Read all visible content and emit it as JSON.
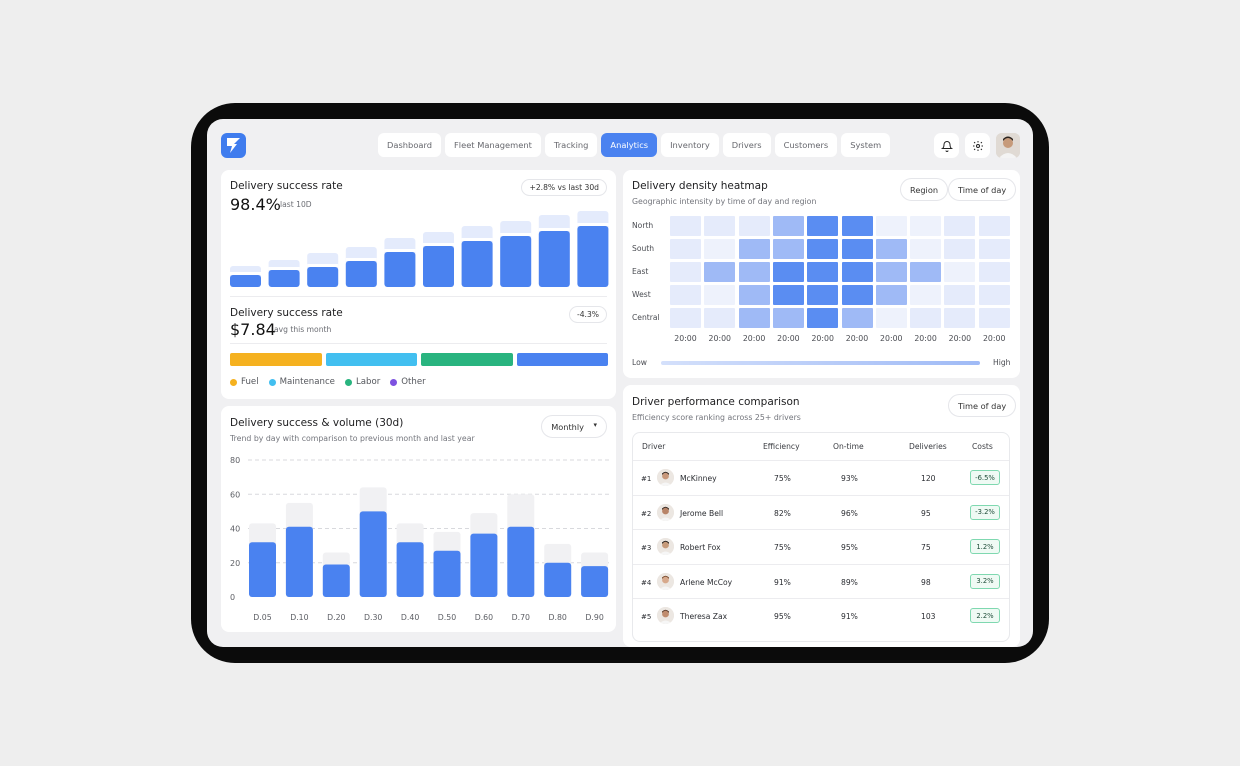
{
  "nav": {
    "tabs": [
      {
        "label": "Dashboard",
        "active": false
      },
      {
        "label": "Fleet Management",
        "active": false
      },
      {
        "label": "Tracking",
        "active": false
      },
      {
        "label": "Analytics",
        "active": true
      },
      {
        "label": "Inventory",
        "active": false
      },
      {
        "label": "Drivers",
        "active": false
      },
      {
        "label": "Customers",
        "active": false
      },
      {
        "label": "System",
        "active": false
      }
    ],
    "icons": [
      "bell-icon",
      "gear-icon"
    ]
  },
  "success_rate": {
    "title": "Delivery success rate",
    "badge": "+2.8% vs last 30d",
    "value": "98.4%",
    "period": "last 10D",
    "chart_data": {
      "type": "bar",
      "values": [
        12,
        17,
        20,
        26,
        35,
        41,
        46,
        51,
        56,
        61
      ],
      "background_values": [
        21,
        27,
        34,
        40,
        49,
        55,
        61,
        66,
        72,
        76
      ]
    }
  },
  "cost": {
    "title": "Delivery success rate",
    "value": "$7.84",
    "note": "avg this month",
    "badge": "-4.3%",
    "segments": [
      {
        "label": "Fuel",
        "color": "#f5b11f"
      },
      {
        "label": "Maintenance",
        "color": "#42bff0"
      },
      {
        "label": "Labor",
        "color": "#29b47f"
      },
      {
        "label": "Other",
        "color": "#4a82f0"
      }
    ],
    "legend_dot_colors": [
      "#f5b11f",
      "#42bff0",
      "#29b47f",
      "#7d52e0"
    ]
  },
  "volume": {
    "title": "Delivery success & volume (30d)",
    "subtitle": "Trend by day with comparison to previous month and last year",
    "dropdown": "Monthly",
    "chart_data": {
      "type": "bar",
      "categories": [
        "D.05",
        "D.10",
        "D.20",
        "D.30",
        "D.40",
        "D.50",
        "D.60",
        "D.70",
        "D.80",
        "D.90"
      ],
      "series": [
        {
          "values": [
            32,
            41,
            19,
            50,
            32,
            27,
            37,
            41,
            20,
            18
          ]
        },
        {
          "values": [
            43,
            55,
            26,
            64,
            43,
            38,
            49,
            60,
            31,
            26
          ]
        }
      ],
      "yticks": [
        "80",
        "60",
        "40",
        "20",
        "0"
      ],
      "ylim": [
        0,
        80
      ]
    }
  },
  "heatmap": {
    "title": "Delivery density heatmap",
    "subtitle": "Geographic intensity by time of day and region",
    "filter_region": "Region",
    "filter_time": "Time of day",
    "rows": [
      "North",
      "South",
      "East",
      "West",
      "Central"
    ],
    "cols": [
      "20:00",
      "20:00",
      "20:00",
      "20:00",
      "20:00",
      "20:00",
      "20:00",
      "20:00",
      "20:00",
      "20:00"
    ],
    "chart_data": {
      "type": "heatmap",
      "values": [
        [
          1,
          1,
          1,
          2,
          3,
          3,
          0,
          0,
          1,
          1
        ],
        [
          1,
          0,
          2,
          2,
          3,
          3,
          2,
          0,
          1,
          1
        ],
        [
          1,
          2,
          2,
          3,
          3,
          3,
          2,
          2,
          0,
          1
        ],
        [
          1,
          0,
          2,
          3,
          3,
          3,
          2,
          0,
          1,
          1
        ],
        [
          1,
          1,
          2,
          2,
          3,
          2,
          0,
          1,
          1,
          1
        ]
      ],
      "colors": [
        "#eef2fc",
        "#e5ebfb",
        "#9fbaf6",
        "#5a8df2"
      ]
    },
    "legend_low": "Low",
    "legend_high": "High"
  },
  "drivers": {
    "title": "Driver performance comparison",
    "subtitle": "Efficiency score ranking across 25+ drivers",
    "filter_time": "Time of day",
    "columns": [
      "Driver",
      "Efficiency",
      "On-time",
      "Deliveries",
      "Costs"
    ],
    "rows": [
      {
        "rank": "#1",
        "name": "McKinney",
        "efficiency": "75%",
        "ontime": "93%",
        "deliveries": "120",
        "cost": "-6.5%"
      },
      {
        "rank": "#2",
        "name": "Jerome Bell",
        "efficiency": "82%",
        "ontime": "96%",
        "deliveries": "95",
        "cost": "-3.2%"
      },
      {
        "rank": "#3",
        "name": "Robert Fox",
        "efficiency": "75%",
        "ontime": "95%",
        "deliveries": "75",
        "cost": "1.2%"
      },
      {
        "rank": "#4",
        "name": "Arlene McCoy",
        "efficiency": "91%",
        "ontime": "89%",
        "deliveries": "98",
        "cost": "3.2%"
      },
      {
        "rank": "#5",
        "name": "Theresa Zax",
        "efficiency": "95%",
        "ontime": "91%",
        "deliveries": "103",
        "cost": "2.2%"
      }
    ]
  }
}
